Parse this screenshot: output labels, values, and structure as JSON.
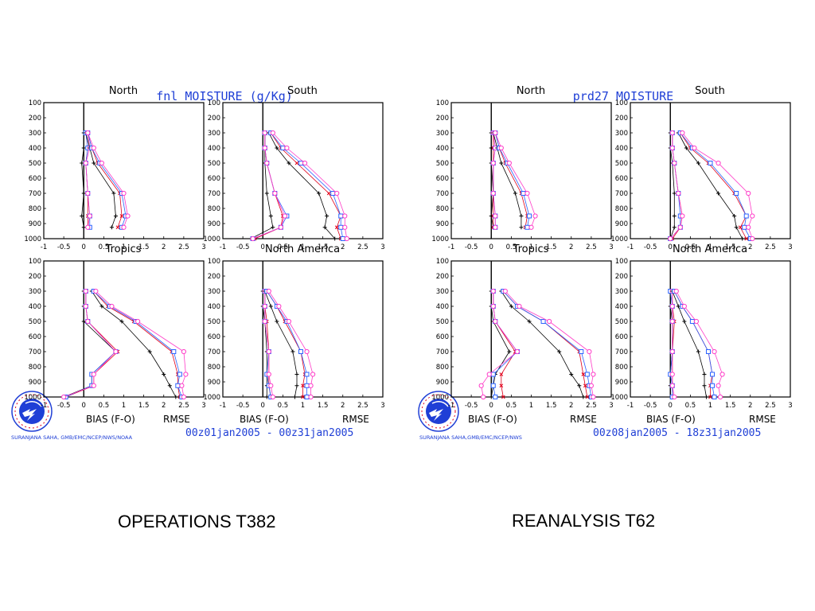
{
  "figures": [
    {
      "title": "fnl MOISTURE (g/Kg)",
      "caption": "OPERATIONS T382",
      "date_range": "00z01jan2005 - 00z31jan2005",
      "credit": "SURANJANA SAHA, GMB/EMC/NCEP/NWS/NOAA",
      "logo_text": "NATIONAL WEATHER SERVICE",
      "footer_left": "BIAS (F-O)",
      "footer_right": "RMSE"
    },
    {
      "title": "prd27 MOISTURE",
      "caption": "REANALYSIS T62",
      "date_range": "00z08jan2005 - 18z31jan2005",
      "credit": "SURANJANA SAHA,GMB/EMC/NCEP/NWS",
      "logo_text": "NATIONAL WEATHER SERVICE",
      "footer_left": "BIAS (F-O)",
      "footer_right": "RMSE"
    }
  ],
  "colors": {
    "title": "#1f3fd6",
    "axis": "#000000",
    "series": [
      "#000000",
      "#e0001a",
      "#2b62ff",
      "#ff3cc8"
    ]
  },
  "chart_data": [
    {
      "type": "line",
      "figure": 0,
      "region": "North",
      "ylim": [
        1000,
        100
      ],
      "xlim": [
        -1,
        3
      ],
      "yticks": [
        "100",
        "200",
        "300",
        "400",
        "500",
        "600",
        "700",
        "800",
        "900",
        "1000"
      ],
      "xticks": [
        "-1",
        "-0.5",
        "0",
        "0.5",
        "1",
        "1.5",
        "2",
        "2.5",
        "3"
      ],
      "levels": [
        300,
        400,
        500,
        700,
        850,
        925
      ],
      "series": [
        {
          "values": [
            0.0,
            0.0,
            -0.05,
            0.0,
            -0.05,
            0.0
          ]
        },
        {
          "values": [
            0.05,
            0.1,
            0.05,
            0.1,
            0.1,
            0.1
          ]
        },
        {
          "values": [
            0.05,
            0.1,
            0.05,
            0.1,
            0.15,
            0.15
          ]
        },
        {
          "values": [
            0.1,
            0.15,
            0.05,
            0.1,
            0.15,
            0.1
          ]
        },
        {
          "values": [
            0.05,
            0.15,
            0.25,
            0.75,
            0.8,
            0.7
          ]
        },
        {
          "values": [
            0.1,
            0.2,
            0.35,
            0.9,
            0.95,
            0.85
          ]
        },
        {
          "values": [
            0.1,
            0.2,
            0.4,
            0.95,
            1.05,
            0.95
          ]
        },
        {
          "values": [
            0.1,
            0.25,
            0.45,
            1.0,
            1.1,
            1.0
          ]
        }
      ]
    },
    {
      "type": "line",
      "figure": 0,
      "region": "South",
      "ylim": [
        1000,
        100
      ],
      "xlim": [
        -1,
        3
      ],
      "yticks": [
        "100",
        "200",
        "300",
        "400",
        "500",
        "600",
        "700",
        "800",
        "900",
        "1000"
      ],
      "xticks": [
        "-1",
        "-0.5",
        "0",
        "0.5",
        "1",
        "1.5",
        "2",
        "2.5",
        "3"
      ],
      "levels": [
        300,
        400,
        500,
        700,
        850,
        925,
        1000
      ],
      "series": [
        {
          "values": [
            0.05,
            0.05,
            0.05,
            0.1,
            0.2,
            0.25,
            -0.3
          ]
        },
        {
          "values": [
            0.05,
            0.05,
            0.1,
            0.3,
            0.5,
            0.45,
            -0.2
          ]
        },
        {
          "values": [
            0.05,
            0.05,
            0.1,
            0.3,
            0.6,
            0.45,
            -0.25
          ]
        },
        {
          "values": [
            0.05,
            0.05,
            0.1,
            0.3,
            0.55,
            0.45,
            -0.25
          ]
        },
        {
          "values": [
            0.15,
            0.35,
            0.65,
            1.4,
            1.6,
            1.55,
            1.8
          ]
        },
        {
          "values": [
            0.2,
            0.45,
            0.85,
            1.65,
            1.95,
            1.85,
            1.95
          ]
        },
        {
          "values": [
            0.2,
            0.5,
            0.95,
            1.75,
            1.95,
            1.95,
            2.0
          ]
        },
        {
          "values": [
            0.25,
            0.6,
            1.05,
            1.85,
            2.05,
            2.05,
            2.1
          ]
        }
      ]
    },
    {
      "type": "line",
      "figure": 0,
      "region": "Tropics",
      "ylim": [
        1000,
        100
      ],
      "xlim": [
        -1,
        3
      ],
      "yticks": [
        "100",
        "200",
        "300",
        "400",
        "500",
        "600",
        "700",
        "800",
        "900",
        "1000"
      ],
      "xticks": [
        "-1",
        "-0.5",
        "0",
        "0.5",
        "1",
        "1.5",
        "2",
        "2.5",
        "3"
      ],
      "levels": [
        300,
        400,
        500,
        700,
        850,
        925,
        1000
      ],
      "series": [
        {
          "values": [
            0.0,
            0.0,
            0.0,
            0.8,
            0.2,
            0.2,
            -0.5
          ]
        },
        {
          "values": [
            0.05,
            0.05,
            0.1,
            0.85,
            0.25,
            0.25,
            -0.45
          ]
        },
        {
          "values": [
            0.05,
            0.05,
            0.1,
            0.8,
            0.2,
            0.2,
            -0.45
          ]
        },
        {
          "values": [
            0.05,
            0.05,
            0.1,
            0.8,
            0.25,
            0.25,
            -0.5
          ]
        },
        {
          "values": [
            0.2,
            0.45,
            0.95,
            1.65,
            2.0,
            2.15,
            2.3
          ]
        },
        {
          "values": [
            0.25,
            0.6,
            1.25,
            2.2,
            2.35,
            2.35,
            2.4
          ]
        },
        {
          "values": [
            0.25,
            0.65,
            1.3,
            2.25,
            2.4,
            2.35,
            2.45
          ]
        },
        {
          "values": [
            0.3,
            0.7,
            1.35,
            2.5,
            2.55,
            2.45,
            2.5
          ]
        }
      ]
    },
    {
      "type": "line",
      "figure": 0,
      "region": "North America",
      "ylim": [
        1000,
        100
      ],
      "xlim": [
        -1,
        3
      ],
      "yticks": [
        "100",
        "200",
        "300",
        "400",
        "500",
        "600",
        "700",
        "800",
        "900",
        "1000"
      ],
      "xticks": [
        "-1",
        "-0.5",
        "0",
        "0.5",
        "1",
        "1.5",
        "2",
        "2.5",
        "3"
      ],
      "levels": [
        300,
        400,
        500,
        700,
        850,
        925,
        1000
      ],
      "series": [
        {
          "values": [
            0.0,
            0.0,
            0.05,
            0.1,
            0.1,
            0.1,
            0.1
          ]
        },
        {
          "values": [
            0.05,
            0.05,
            0.1,
            0.15,
            0.15,
            0.15,
            0.2
          ]
        },
        {
          "values": [
            0.05,
            0.05,
            0.05,
            0.15,
            0.1,
            0.15,
            0.2
          ]
        },
        {
          "values": [
            0.05,
            0.05,
            0.05,
            0.15,
            0.15,
            0.2,
            0.25
          ]
        },
        {
          "values": [
            0.05,
            0.2,
            0.35,
            0.75,
            0.85,
            0.85,
            0.8
          ]
        },
        {
          "values": [
            0.1,
            0.35,
            0.55,
            0.95,
            1.05,
            1.0,
            1.0
          ]
        },
        {
          "values": [
            0.1,
            0.35,
            0.6,
            0.95,
            1.1,
            1.1,
            1.1
          ]
        },
        {
          "values": [
            0.15,
            0.4,
            0.65,
            1.1,
            1.25,
            1.2,
            1.2
          ]
        }
      ]
    },
    {
      "type": "line",
      "figure": 1,
      "region": "North",
      "ylim": [
        1000,
        100
      ],
      "xlim": [
        -1,
        3
      ],
      "yticks": [
        "100",
        "200",
        "300",
        "400",
        "500",
        "600",
        "700",
        "800",
        "900",
        "1000"
      ],
      "xticks": [
        "-1",
        "-0.5",
        "0",
        "0.5",
        "1",
        "1.5",
        "2",
        "2.5",
        "3"
      ],
      "levels": [
        300,
        400,
        500,
        700,
        850,
        925
      ],
      "series": [
        {
          "values": [
            0.0,
            0.0,
            0.0,
            0.05,
            0.0,
            0.05
          ]
        },
        {
          "values": [
            0.05,
            0.05,
            0.05,
            0.05,
            0.05,
            0.05
          ]
        },
        {
          "values": [
            0.05,
            0.1,
            0.05,
            0.05,
            0.1,
            0.1
          ]
        },
        {
          "values": [
            0.05,
            0.1,
            0.05,
            0.05,
            0.1,
            0.1
          ]
        },
        {
          "values": [
            0.05,
            0.15,
            0.25,
            0.6,
            0.75,
            0.75
          ]
        },
        {
          "values": [
            0.1,
            0.2,
            0.35,
            0.75,
            0.9,
            0.85
          ]
        },
        {
          "values": [
            0.1,
            0.2,
            0.4,
            0.8,
            0.95,
            0.9
          ]
        },
        {
          "values": [
            0.1,
            0.25,
            0.45,
            0.9,
            1.1,
            1.0
          ]
        }
      ]
    },
    {
      "type": "line",
      "figure": 1,
      "region": "South",
      "ylim": [
        1000,
        100
      ],
      "xlim": [
        -1,
        3
      ],
      "yticks": [
        "100",
        "200",
        "300",
        "400",
        "500",
        "600",
        "700",
        "800",
        "900",
        "1000"
      ],
      "xticks": [
        "-1",
        "-0.5",
        "0",
        "0.5",
        "1",
        "1.5",
        "2",
        "2.5",
        "3"
      ],
      "levels": [
        300,
        400,
        500,
        700,
        850,
        925,
        1000
      ],
      "series": [
        {
          "values": [
            0.0,
            0.0,
            0.05,
            0.1,
            0.1,
            0.1,
            0.0
          ]
        },
        {
          "values": [
            0.05,
            0.05,
            0.1,
            0.2,
            0.3,
            0.25,
            0.05
          ]
        },
        {
          "values": [
            0.05,
            0.05,
            0.1,
            0.2,
            0.25,
            0.25,
            0.0
          ]
        },
        {
          "values": [
            0.05,
            0.05,
            0.1,
            0.2,
            0.3,
            0.25,
            0.0
          ]
        },
        {
          "values": [
            0.2,
            0.4,
            0.7,
            1.2,
            1.6,
            1.65,
            1.8
          ]
        },
        {
          "values": [
            0.25,
            0.5,
            0.95,
            1.6,
            1.9,
            1.75,
            1.9
          ]
        },
        {
          "values": [
            0.25,
            0.55,
            1.0,
            1.65,
            1.9,
            1.85,
            2.0
          ]
        },
        {
          "values": [
            0.3,
            0.6,
            1.2,
            1.95,
            2.05,
            1.95,
            2.05
          ]
        }
      ]
    },
    {
      "type": "line",
      "figure": 1,
      "region": "Tropics",
      "ylim": [
        1000,
        100
      ],
      "xlim": [
        -1,
        3
      ],
      "yticks": [
        "100",
        "200",
        "300",
        "400",
        "500",
        "600",
        "700",
        "800",
        "900",
        "1000"
      ],
      "xticks": [
        "-1",
        "-0.5",
        "0",
        "0.5",
        "1",
        "1.5",
        "2",
        "2.5",
        "3"
      ],
      "levels": [
        300,
        400,
        500,
        700,
        850,
        925,
        1000
      ],
      "series": [
        {
          "values": [
            0.0,
            0.0,
            0.05,
            0.45,
            0.1,
            0.05,
            0.0
          ]
        },
        {
          "values": [
            0.05,
            0.05,
            0.1,
            0.6,
            0.25,
            0.25,
            0.3
          ]
        },
        {
          "values": [
            0.05,
            0.05,
            0.1,
            0.65,
            0.05,
            0.05,
            0.1
          ]
        },
        {
          "values": [
            0.05,
            0.05,
            0.1,
            0.65,
            -0.05,
            -0.25,
            -0.2
          ]
        },
        {
          "values": [
            0.25,
            0.5,
            0.95,
            1.7,
            2.0,
            2.2,
            2.3
          ]
        },
        {
          "values": [
            0.3,
            0.65,
            1.3,
            2.2,
            2.3,
            2.35,
            2.4
          ]
        },
        {
          "values": [
            0.3,
            0.65,
            1.3,
            2.25,
            2.4,
            2.45,
            2.5
          ]
        },
        {
          "values": [
            0.35,
            0.7,
            1.45,
            2.45,
            2.55,
            2.5,
            2.55
          ]
        }
      ]
    },
    {
      "type": "line",
      "figure": 1,
      "region": "North America",
      "ylim": [
        1000,
        100
      ],
      "xlim": [
        -1,
        3
      ],
      "yticks": [
        "100",
        "200",
        "300",
        "400",
        "500",
        "600",
        "700",
        "800",
        "900",
        "1000"
      ],
      "xticks": [
        "-1",
        "-0.5",
        "0",
        "0.5",
        "1",
        "1.5",
        "2",
        "2.5",
        "3"
      ],
      "levels": [
        300,
        400,
        500,
        700,
        850,
        925,
        1000
      ],
      "series": [
        {
          "values": [
            0.0,
            0.0,
            0.05,
            0.05,
            0.0,
            0.0,
            0.0
          ]
        },
        {
          "values": [
            0.05,
            0.05,
            0.1,
            0.05,
            0.05,
            0.05,
            0.05
          ]
        },
        {
          "values": [
            0.0,
            0.05,
            0.05,
            0.05,
            0.0,
            0.05,
            0.05
          ]
        },
        {
          "values": [
            0.05,
            0.05,
            0.05,
            0.05,
            0.05,
            0.05,
            0.1
          ]
        },
        {
          "values": [
            0.05,
            0.2,
            0.35,
            0.7,
            0.85,
            0.85,
            0.9
          ]
        },
        {
          "values": [
            0.1,
            0.3,
            0.55,
            0.95,
            1.05,
            1.0,
            1.0
          ]
        },
        {
          "values": [
            0.1,
            0.3,
            0.55,
            0.95,
            1.05,
            1.05,
            1.1
          ]
        },
        {
          "values": [
            0.15,
            0.35,
            0.65,
            1.1,
            1.3,
            1.2,
            1.25
          ]
        }
      ]
    }
  ]
}
